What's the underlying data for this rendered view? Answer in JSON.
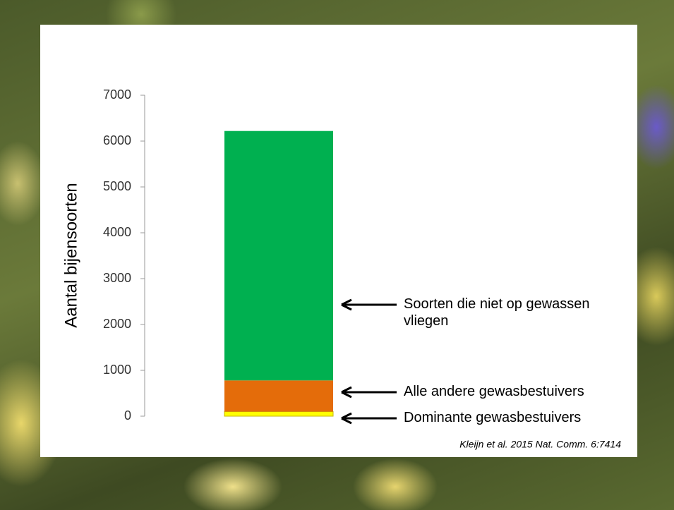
{
  "chart_data": {
    "type": "stacked_bar",
    "y_label": "Aantal bijensoorten",
    "categories": [
      null
    ],
    "series": [
      {
        "name": "Dominante gewasbestuivers",
        "color": "#ffff00",
        "values": [
          100
        ]
      },
      {
        "name": "Alle andere gewasbestuivers",
        "color": "#e46c0a",
        "values": [
          680
        ]
      },
      {
        "name": "Soorten die niet op gewassen vliegen",
        "color": "#00b050",
        "values": [
          5440
        ]
      }
    ],
    "ylim": [
      0,
      7000
    ],
    "yticks": [
      0,
      1000,
      2000,
      3000,
      4000,
      5000,
      6000,
      7000
    ],
    "source": "Kleijn et al. 2015 Nat. Comm. 6:7414"
  }
}
